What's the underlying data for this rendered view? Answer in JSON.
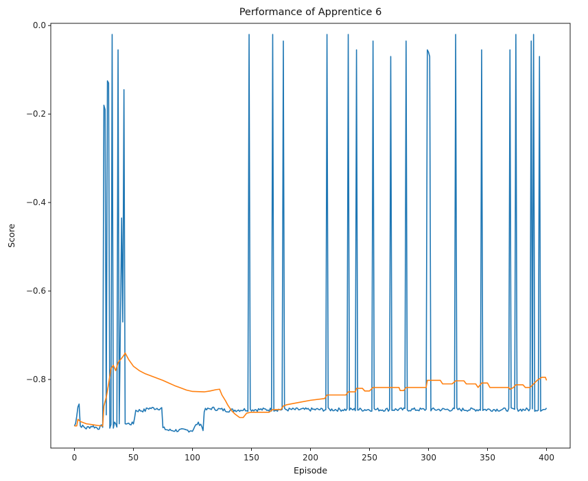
{
  "chart_data": {
    "type": "line",
    "title": "Performance of Apprentice 6",
    "xlabel": "Episode",
    "ylabel": "Score",
    "xlim": [
      -20,
      420
    ],
    "ylim": [
      -0.955,
      0.005
    ],
    "xticks": [
      0,
      50,
      100,
      150,
      200,
      250,
      300,
      350,
      400
    ],
    "yticks": [
      0.0,
      -0.2,
      -0.4,
      -0.6,
      -0.8
    ],
    "ytick_labels": [
      "0.0",
      "−0.2",
      "−0.4",
      "−0.6",
      "−0.8"
    ],
    "grid": false,
    "legend": "none",
    "series": [
      {
        "color": "#1f77b4",
        "baseline": -0.87,
        "base_segments": [
          [
            0,
            -0.905
          ],
          [
            1,
            -0.9
          ],
          [
            2,
            -0.88
          ],
          [
            3,
            -0.86
          ],
          [
            4,
            -0.855
          ],
          [
            5,
            -0.905
          ],
          [
            6,
            -0.905
          ],
          [
            10,
            -0.91
          ],
          [
            15,
            -0.905
          ],
          [
            20,
            -0.91
          ],
          [
            24,
            -0.905
          ],
          [
            34,
            -0.9
          ],
          [
            36,
            -0.905
          ],
          [
            44,
            -0.9
          ],
          [
            50,
            -0.9
          ],
          [
            52,
            -0.87
          ],
          [
            60,
            -0.87
          ],
          [
            62,
            -0.865
          ],
          [
            74,
            -0.865
          ],
          [
            75,
            -0.91
          ],
          [
            80,
            -0.915
          ],
          [
            90,
            -0.915
          ],
          [
            100,
            -0.915
          ],
          [
            104,
            -0.9
          ],
          [
            107,
            -0.9
          ],
          [
            109,
            -0.915
          ],
          [
            110,
            -0.87
          ],
          [
            116,
            -0.865
          ],
          [
            130,
            -0.87
          ],
          [
            145,
            -0.868
          ],
          [
            200,
            -0.868
          ],
          [
            250,
            -0.868
          ],
          [
            300,
            -0.868
          ],
          [
            350,
            -0.868
          ],
          [
            400,
            -0.868
          ]
        ],
        "spikes": [
          [
            25,
            -0.18
          ],
          [
            26,
            -0.19
          ],
          [
            27,
            -0.88
          ],
          [
            28,
            -0.125
          ],
          [
            29,
            -0.13
          ],
          [
            30,
            -0.91
          ],
          [
            32,
            -0.02
          ],
          [
            33,
            -0.91
          ],
          [
            35,
            -0.9
          ],
          [
            37,
            -0.055
          ],
          [
            38,
            -0.9
          ],
          [
            39,
            -0.67
          ],
          [
            40,
            -0.435
          ],
          [
            41,
            -0.67
          ],
          [
            42,
            -0.145
          ],
          [
            43,
            -0.9
          ],
          [
            148,
            -0.02
          ],
          [
            168,
            -0.02
          ],
          [
            177,
            -0.035
          ],
          [
            214,
            -0.02
          ],
          [
            232,
            -0.02
          ],
          [
            239,
            -0.055
          ],
          [
            253,
            -0.035
          ],
          [
            268,
            -0.07
          ],
          [
            281,
            -0.035
          ],
          [
            299,
            -0.055
          ],
          [
            300,
            -0.06
          ],
          [
            301,
            -0.07
          ],
          [
            323,
            -0.02
          ],
          [
            345,
            -0.055
          ],
          [
            369,
            -0.055
          ],
          [
            374,
            -0.02
          ],
          [
            387,
            -0.035
          ],
          [
            389,
            -0.02
          ],
          [
            394,
            -0.07
          ]
        ]
      },
      {
        "color": "#ff7f0e",
        "points": [
          [
            0,
            -0.905
          ],
          [
            2,
            -0.905
          ],
          [
            3,
            -0.89
          ],
          [
            5,
            -0.895
          ],
          [
            10,
            -0.9
          ],
          [
            15,
            -0.902
          ],
          [
            20,
            -0.904
          ],
          [
            24,
            -0.905
          ],
          [
            25,
            -0.86
          ],
          [
            27,
            -0.84
          ],
          [
            29,
            -0.81
          ],
          [
            31,
            -0.775
          ],
          [
            33,
            -0.768
          ],
          [
            35,
            -0.78
          ],
          [
            37,
            -0.762
          ],
          [
            40,
            -0.752
          ],
          [
            42,
            -0.745
          ],
          [
            43,
            -0.74
          ],
          [
            46,
            -0.755
          ],
          [
            50,
            -0.77
          ],
          [
            55,
            -0.78
          ],
          [
            60,
            -0.787
          ],
          [
            65,
            -0.792
          ],
          [
            70,
            -0.797
          ],
          [
            75,
            -0.802
          ],
          [
            80,
            -0.808
          ],
          [
            85,
            -0.814
          ],
          [
            90,
            -0.819
          ],
          [
            95,
            -0.824
          ],
          [
            100,
            -0.827
          ],
          [
            110,
            -0.828
          ],
          [
            115,
            -0.826
          ],
          [
            120,
            -0.823
          ],
          [
            123,
            -0.822
          ],
          [
            125,
            -0.835
          ],
          [
            128,
            -0.848
          ],
          [
            130,
            -0.858
          ],
          [
            133,
            -0.87
          ],
          [
            136,
            -0.878
          ],
          [
            140,
            -0.886
          ],
          [
            143,
            -0.886
          ],
          [
            146,
            -0.876
          ],
          [
            150,
            -0.874
          ],
          [
            165,
            -0.874
          ],
          [
            168,
            -0.868
          ],
          [
            170,
            -0.868
          ],
          [
            175,
            -0.868
          ],
          [
            177,
            -0.86
          ],
          [
            180,
            -0.857
          ],
          [
            190,
            -0.852
          ],
          [
            200,
            -0.847
          ],
          [
            212,
            -0.843
          ],
          [
            214,
            -0.835
          ],
          [
            220,
            -0.835
          ],
          [
            230,
            -0.835
          ],
          [
            232,
            -0.828
          ],
          [
            238,
            -0.828
          ],
          [
            239,
            -0.82
          ],
          [
            244,
            -0.82
          ],
          [
            246,
            -0.826
          ],
          [
            250,
            -0.826
          ],
          [
            253,
            -0.818
          ],
          [
            275,
            -0.818
          ],
          [
            276,
            -0.825
          ],
          [
            279,
            -0.825
          ],
          [
            281,
            -0.818
          ],
          [
            298,
            -0.818
          ],
          [
            299,
            -0.802
          ],
          [
            310,
            -0.802
          ],
          [
            312,
            -0.81
          ],
          [
            320,
            -0.81
          ],
          [
            323,
            -0.803
          ],
          [
            330,
            -0.803
          ],
          [
            332,
            -0.81
          ],
          [
            340,
            -0.81
          ],
          [
            342,
            -0.818
          ],
          [
            345,
            -0.808
          ],
          [
            350,
            -0.808
          ],
          [
            352,
            -0.818
          ],
          [
            368,
            -0.818
          ],
          [
            369,
            -0.822
          ],
          [
            372,
            -0.818
          ],
          [
            374,
            -0.812
          ],
          [
            380,
            -0.812
          ],
          [
            382,
            -0.818
          ],
          [
            386,
            -0.818
          ],
          [
            389,
            -0.81
          ],
          [
            392,
            -0.802
          ],
          [
            396,
            -0.795
          ],
          [
            399,
            -0.795
          ],
          [
            400,
            -0.802
          ]
        ]
      }
    ]
  }
}
